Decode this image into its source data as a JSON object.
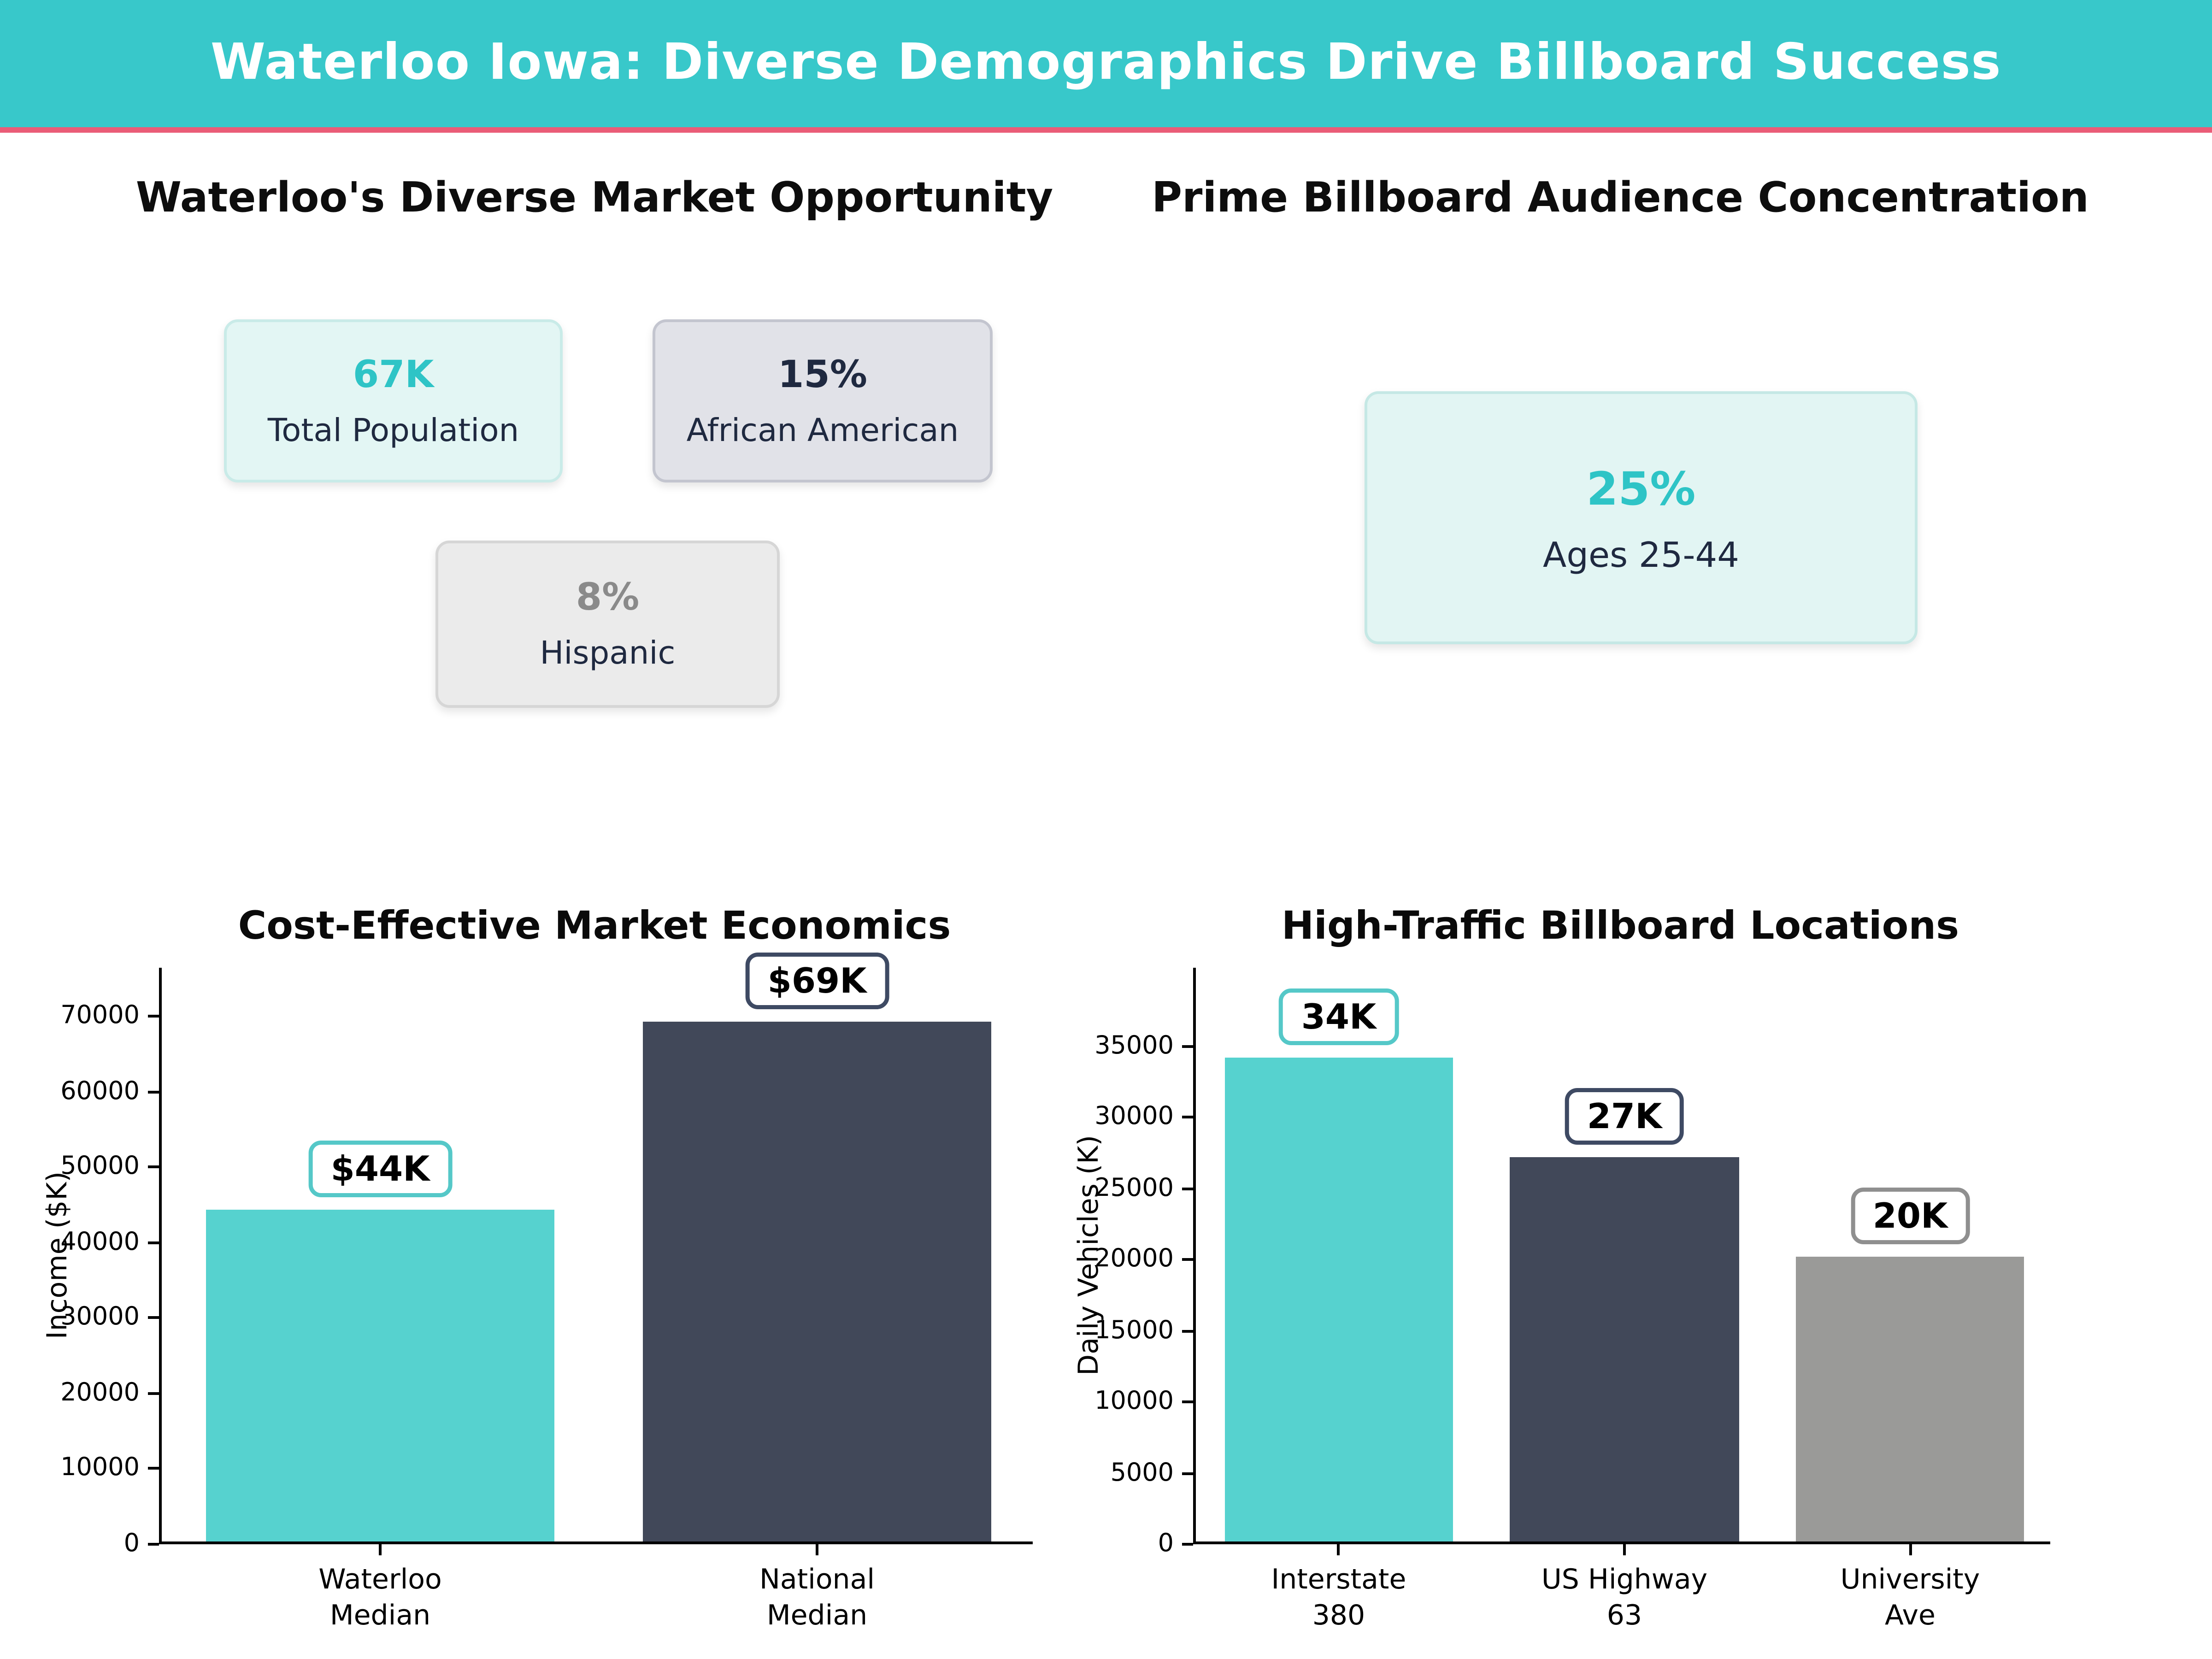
{
  "header": {
    "title": "Waterloo Iowa: Diverse Demographics Drive Billboard Success",
    "bg_color": "#38c8ca",
    "divider_color": "#ea5c77",
    "text_color": "#ffffff"
  },
  "sections": {
    "demographics": {
      "title": "Waterloo's Diverse Market Opportunity",
      "cards": [
        {
          "value": "67K",
          "label": "Total Population",
          "value_color": "#2ec4c6",
          "bg": "#e3f6f4",
          "border": "#c9ebe8"
        },
        {
          "value": "15%",
          "label": "African American",
          "value_color": "#1f2940",
          "bg": "#e1e2e8",
          "border": "#c3c5cf"
        },
        {
          "value": "8%",
          "label": "Hispanic",
          "value_color": "#8a8a8a",
          "bg": "#ebebeb",
          "border": "#d6d6d6"
        }
      ]
    },
    "audience": {
      "title": "Prime Billboard Audience Concentration",
      "cards": [
        {
          "value": "25%",
          "label": "Ages 25-44",
          "value_color": "#2ec4c6",
          "bg": "#e2f5f3",
          "border": "#c5e8e5"
        }
      ]
    }
  },
  "chart_data": [
    {
      "type": "bar",
      "title": "Cost-Effective Market Economics",
      "categories": [
        "Waterloo\nMedian",
        "National\nMedian"
      ],
      "values": [
        44000,
        69000
      ],
      "bar_labels": [
        "$44K",
        "$69K"
      ],
      "bar_colors": [
        "#56d2cf",
        "#414859"
      ],
      "label_border_colors": [
        "#55c8c8",
        "#3e4a63"
      ],
      "xlabel": "",
      "ylabel": "Income ($K)",
      "ylim": [
        0,
        76500
      ],
      "yticks": [
        0,
        10000,
        20000,
        30000,
        40000,
        50000,
        60000,
        70000
      ],
      "grid": false,
      "legend": null
    },
    {
      "type": "bar",
      "title": "High-Traffic Billboard Locations",
      "categories": [
        "Interstate\n380",
        "US Highway\n63",
        "University\nAve"
      ],
      "values": [
        34000,
        27000,
        20000
      ],
      "bar_labels": [
        "34K",
        "27K",
        "20K"
      ],
      "bar_colors": [
        "#56d2cf",
        "#414859",
        "#9a9a98"
      ],
      "label_border_colors": [
        "#55c8c8",
        "#3e4a63",
        "#8f8f8f"
      ],
      "xlabel": "",
      "ylabel": "Daily Vehicles (K)",
      "ylim": [
        0,
        40500
      ],
      "yticks": [
        0,
        5000,
        10000,
        15000,
        20000,
        25000,
        30000,
        35000
      ],
      "grid": false,
      "legend": null
    }
  ]
}
